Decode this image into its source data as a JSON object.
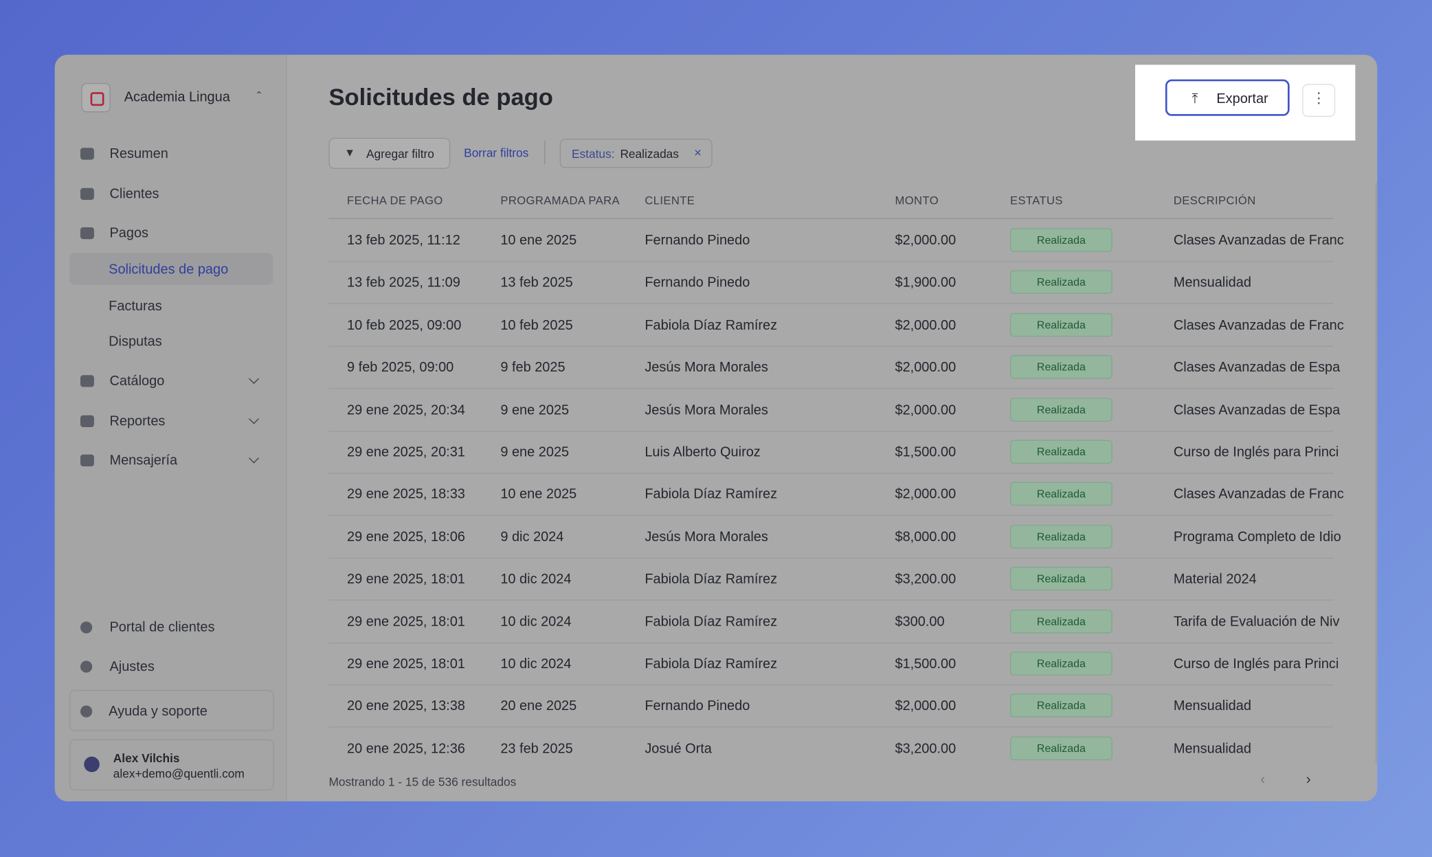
{
  "sidebar": {
    "org": "Academia Lingua",
    "nav": [
      "Resumen",
      "Clientes",
      "Pagos"
    ],
    "pagos_sub": [
      "Solicitudes de pago",
      "Facturas",
      "Disputas"
    ],
    "groups": [
      "Catálogo",
      "Reportes",
      "Mensajería"
    ],
    "bottom": [
      "Portal de clientes",
      "Ajustes",
      "Ayuda y soporte"
    ],
    "user": {
      "name": "Alex Vilchis",
      "email": "alex+demo@quentli.com"
    }
  },
  "header": {
    "title": "Solicitudes de pago",
    "export": "Exportar"
  },
  "filters": {
    "add": "Agregar filtro",
    "clear": "Borrar filtros",
    "chip_label": "Estatus:",
    "chip_value": "Realizadas"
  },
  "table": {
    "columns": [
      "FECHA DE PAGO",
      "PROGRAMADA PARA",
      "CLIENTE",
      "MONTO",
      "ESTATUS",
      "DESCRIPCIÓN"
    ],
    "rows": [
      [
        "13 feb 2025, 11:12",
        "10 ene 2025",
        "Fernando Pinedo",
        "$2,000.00",
        "Realizada",
        "Clases Avanzadas de Franc"
      ],
      [
        "13 feb 2025, 11:09",
        "13 feb 2025",
        "Fernando Pinedo",
        "$1,900.00",
        "Realizada",
        "Mensualidad"
      ],
      [
        "10 feb 2025, 09:00",
        "10 feb 2025",
        "Fabiola Díaz Ramírez",
        "$2,000.00",
        "Realizada",
        "Clases Avanzadas de Franc"
      ],
      [
        "9 feb 2025, 09:00",
        "9 feb 2025",
        "Jesús Mora Morales",
        "$2,000.00",
        "Realizada",
        "Clases Avanzadas de Espa"
      ],
      [
        "29 ene 2025, 20:34",
        "9 ene 2025",
        "Jesús Mora Morales",
        "$2,000.00",
        "Realizada",
        "Clases Avanzadas de Espa"
      ],
      [
        "29 ene 2025, 20:31",
        "9 ene 2025",
        "Luis Alberto Quiroz",
        "$1,500.00",
        "Realizada",
        "Curso de Inglés para Princi"
      ],
      [
        "29 ene 2025, 18:33",
        "10 ene 2025",
        "Fabiola Díaz Ramírez",
        "$2,000.00",
        "Realizada",
        "Clases Avanzadas de Franc"
      ],
      [
        "29 ene 2025, 18:06",
        "9 dic 2024",
        "Jesús Mora Morales",
        "$8,000.00",
        "Realizada",
        "Programa Completo de Idio"
      ],
      [
        "29 ene 2025, 18:01",
        "10 dic 2024",
        "Fabiola Díaz Ramírez",
        "$3,200.00",
        "Realizada",
        "Material 2024"
      ],
      [
        "29 ene 2025, 18:01",
        "10 dic 2024",
        "Fabiola Díaz Ramírez",
        "$300.00",
        "Realizada",
        "Tarifa de Evaluación de Niv"
      ],
      [
        "29 ene 2025, 18:01",
        "10 dic 2024",
        "Fabiola Díaz Ramírez",
        "$1,500.00",
        "Realizada",
        "Curso de Inglés para Princi"
      ],
      [
        "20 ene 2025, 13:38",
        "20 ene 2025",
        "Fernando Pinedo",
        "$2,000.00",
        "Realizada",
        "Mensualidad"
      ],
      [
        "20 ene 2025, 12:36",
        "23 feb 2025",
        "Josué Orta",
        "$3,200.00",
        "Realizada",
        "Mensualidad"
      ]
    ],
    "footer": "Mostrando 1 - 15 de 536 resultados"
  }
}
